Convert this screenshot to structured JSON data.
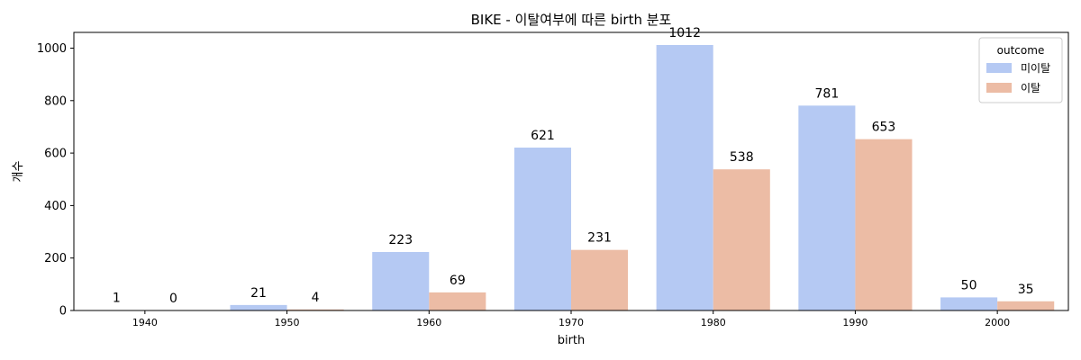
{
  "chart_data": {
    "type": "bar",
    "title": "BIKE - 이탈여부에 따른 birth 분포",
    "xlabel": "birth",
    "ylabel": "개수",
    "categories": [
      "1940",
      "1950",
      "1960",
      "1970",
      "1980",
      "1990",
      "2000"
    ],
    "series": [
      {
        "name": "미이탈",
        "color": "#b5c9f3",
        "values": [
          1,
          21,
          223,
          621,
          1012,
          781,
          50
        ]
      },
      {
        "name": "이탈",
        "color": "#ecbca5",
        "values": [
          0,
          4,
          69,
          231,
          538,
          653,
          35
        ]
      }
    ],
    "ylim": [
      0,
      1060
    ],
    "yticks": [
      0,
      200,
      400,
      600,
      800,
      1000
    ],
    "legend": {
      "title": "outcome",
      "placement": "top-right"
    },
    "grid": false
  }
}
